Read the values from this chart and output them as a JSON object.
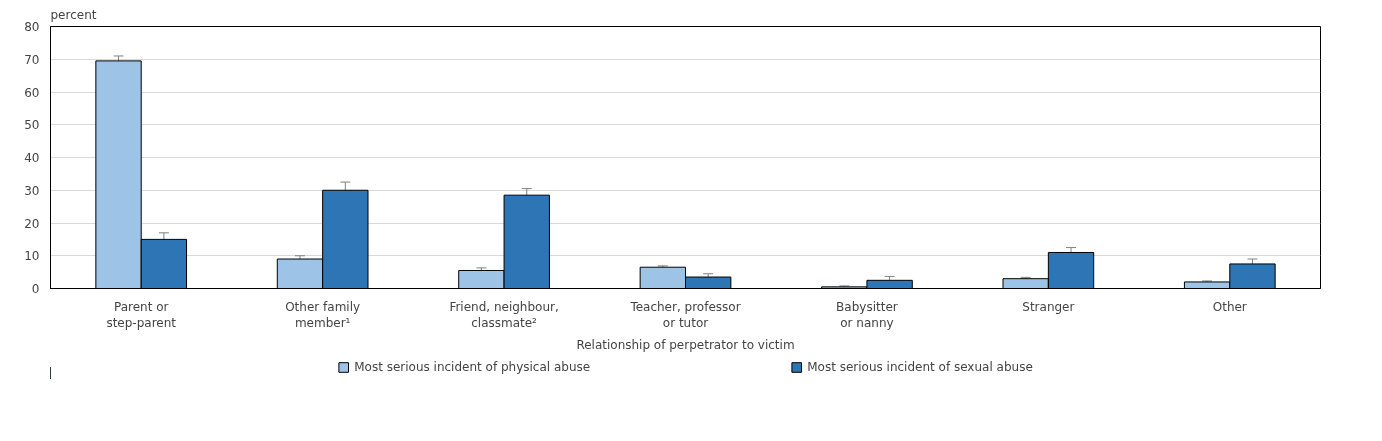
{
  "chart_data": {
    "type": "bar",
    "ylabel": "percent",
    "xlabel": "Relationship of perpetrator to victim",
    "categories": [
      "Parent or\nstep-parent",
      "Other family\nmember¹",
      "Friend, neighbour,\nclassmate²",
      "Teacher, professor\nor tutor",
      "Babysitter\nor nanny",
      "Stranger",
      "Other"
    ],
    "series": [
      {
        "name": "Most serious incident of physical abuse",
        "color": "#9dc3e6",
        "values": [
          69.5,
          9,
          5.5,
          6.5,
          0.5,
          3,
          2
        ],
        "errors": [
          1.5,
          1,
          0.8,
          0.4,
          0.3,
          0.4,
          0.3
        ]
      },
      {
        "name": "Most serious incident of sexual abuse",
        "color": "#2e75b6",
        "values": [
          15,
          30,
          28.5,
          3.5,
          2.5,
          11,
          7.5
        ],
        "errors": [
          2,
          2.5,
          2,
          1,
          1.2,
          1.5,
          1.5
        ]
      }
    ],
    "ylim": [
      0,
      80
    ],
    "yticks": [
      0,
      10,
      20,
      30,
      40,
      50,
      60,
      70,
      80
    ],
    "grid": "y",
    "legend": "bottom"
  }
}
